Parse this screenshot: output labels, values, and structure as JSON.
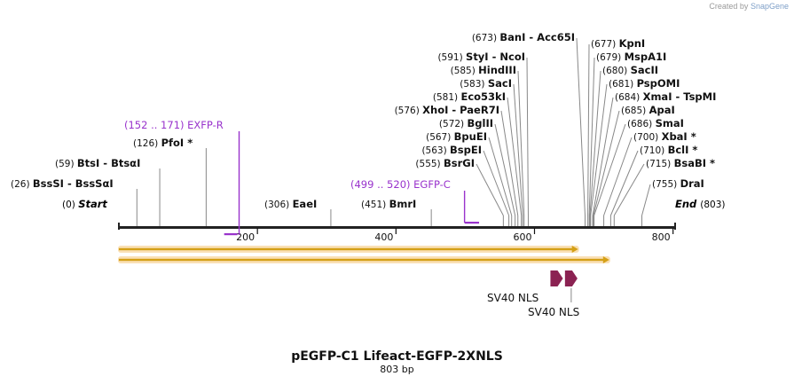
{
  "credit": {
    "prefix": "Created by",
    "brand": "SnapGene"
  },
  "title": "pEGFP-C1 Lifeact-EGFP-2XNLS",
  "subtitle": "803 bp",
  "sequence": {
    "length": 803,
    "start_label": "Start",
    "end_label": "End",
    "start_pos": "(0)",
    "end_pos": "(803)"
  },
  "ticks": [
    200,
    400,
    600,
    800
  ],
  "primers": [
    {
      "name": "EXFP-R",
      "range": "(152 .. 171)",
      "from": 152,
      "to": 171,
      "color": "#9933cc"
    },
    {
      "name": "EGFP-C",
      "range": "(499 .. 520)",
      "from": 499,
      "to": 520,
      "color": "#9933cc"
    }
  ],
  "enzymes_left": [
    {
      "pos": "(26)",
      "pos_value": 26,
      "name": "BssSI",
      "alt": "BssSαI"
    },
    {
      "pos": "(59)",
      "pos_value": 59,
      "name": "BtsI",
      "alt": "BtsαI"
    },
    {
      "pos": "(126)",
      "pos_value": 126,
      "name": "PfoI *"
    },
    {
      "pos": "(306)",
      "pos_value": 306,
      "name": "EaeI"
    },
    {
      "pos": "(451)",
      "pos_value": 451,
      "name": "BmrI"
    }
  ],
  "enzymes_mid": [
    {
      "pos": "(555)",
      "pos_value": 555,
      "name": "BsrGI"
    },
    {
      "pos": "(563)",
      "pos_value": 563,
      "name": "BspEI"
    },
    {
      "pos": "(567)",
      "pos_value": 567,
      "name": "BpuEI"
    },
    {
      "pos": "(572)",
      "pos_value": 572,
      "name": "BglII"
    },
    {
      "pos": "(576)",
      "pos_value": 576,
      "name": "XhoI",
      "alt": "PaeR7I"
    },
    {
      "pos": "(581)",
      "pos_value": 581,
      "name": "Eco53kI"
    },
    {
      "pos": "(583)",
      "pos_value": 583,
      "name": "SacI"
    },
    {
      "pos": "(585)",
      "pos_value": 585,
      "name": "HindIII"
    },
    {
      "pos": "(591)",
      "pos_value": 591,
      "name": "StyI",
      "alt": "NcoI"
    },
    {
      "pos": "(673)",
      "pos_value": 673,
      "name": "BanI",
      "alt": "Acc65I"
    }
  ],
  "enzymes_right": [
    {
      "pos": "(677)",
      "pos_value": 677,
      "name": "KpnI"
    },
    {
      "pos": "(679)",
      "pos_value": 679,
      "name": "MspA1I"
    },
    {
      "pos": "(680)",
      "pos_value": 680,
      "name": "SacII"
    },
    {
      "pos": "(681)",
      "pos_value": 681,
      "name": "PspOMI"
    },
    {
      "pos": "(684)",
      "pos_value": 684,
      "name": "XmaI",
      "alt": "TspMI"
    },
    {
      "pos": "(685)",
      "pos_value": 685,
      "name": "ApaI"
    },
    {
      "pos": "(686)",
      "pos_value": 686,
      "name": "SmaI"
    },
    {
      "pos": "(700)",
      "pos_value": 700,
      "name": "XbaI *"
    },
    {
      "pos": "(710)",
      "pos_value": 710,
      "name": "BclI *"
    },
    {
      "pos": "(715)",
      "pos_value": 715,
      "name": "BsaBI *"
    },
    {
      "pos": "(755)",
      "pos_value": 755,
      "name": "DraI"
    }
  ],
  "orfs": [
    {
      "from": 0,
      "to": 663,
      "color": "#d4a017"
    },
    {
      "from": 0,
      "to": 708,
      "color": "#d4a017"
    }
  ],
  "features": [
    {
      "name": "SV40 NLS",
      "from": 623,
      "to": 641,
      "color": "#8b2252"
    },
    {
      "name": "SV40 NLS",
      "from": 644,
      "to": 662,
      "color": "#8b2252"
    }
  ],
  "colors": {
    "backbone": "#222222",
    "primer": "#9933cc",
    "feature": "#8b2252",
    "orf": "#d4a017",
    "orf_glow": "#f5c77a"
  }
}
